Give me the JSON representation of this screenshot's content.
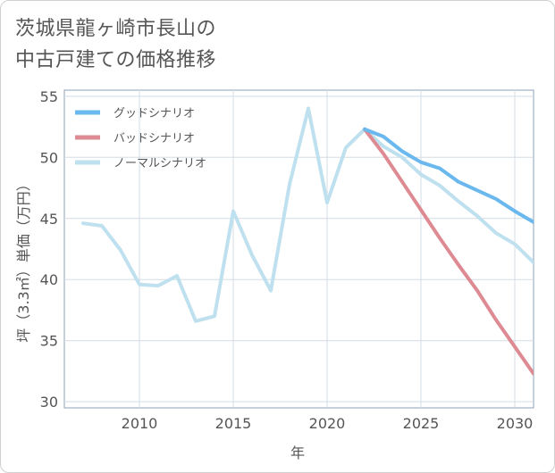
{
  "chart_data": {
    "type": "line",
    "title_lines": [
      "茨城県龍ヶ崎市長山の",
      "中古戸建ての価格推移"
    ],
    "xlabel": "年",
    "ylabel": "坪（3.3㎡）単価（万円）",
    "xlim": [
      2006,
      2031
    ],
    "ylim": [
      29.5,
      55.5
    ],
    "x_ticks": [
      2010,
      2015,
      2020,
      2025,
      2030
    ],
    "y_ticks": [
      30,
      35,
      40,
      45,
      50,
      55
    ],
    "grid": true,
    "legend_position": "top-left",
    "series": [
      {
        "name": "グッドシナリオ",
        "color": "#6ab8ee",
        "x": [
          2022,
          2023,
          2024,
          2025,
          2026,
          2027,
          2028,
          2029,
          2030,
          2031
        ],
        "y": [
          52.3,
          51.7,
          50.5,
          49.6,
          49.1,
          48.0,
          47.3,
          46.6,
          45.6,
          44.7
        ]
      },
      {
        "name": "バッドシナリオ",
        "color": "#dd8a93",
        "x": [
          2022,
          2023,
          2024,
          2025,
          2026,
          2027,
          2028,
          2029,
          2030,
          2031
        ],
        "y": [
          52.3,
          50.3,
          48.0,
          45.7,
          43.4,
          41.2,
          39.1,
          36.7,
          34.5,
          32.3
        ]
      },
      {
        "name": "ノーマルシナリオ",
        "color": "#bfe0ee",
        "x": [
          2007,
          2008,
          2009,
          2010,
          2011,
          2012,
          2013,
          2014,
          2015,
          2016,
          2017,
          2018,
          2019,
          2020,
          2021,
          2022,
          2023,
          2024,
          2025,
          2026,
          2027,
          2028,
          2029,
          2030,
          2031
        ],
        "y": [
          44.6,
          44.4,
          42.4,
          39.6,
          39.5,
          40.3,
          36.6,
          37.0,
          45.6,
          42.0,
          39.1,
          47.8,
          54.0,
          46.3,
          50.8,
          52.3,
          50.9,
          50.0,
          48.6,
          47.7,
          46.4,
          45.2,
          43.8,
          42.9,
          41.4
        ]
      }
    ]
  }
}
